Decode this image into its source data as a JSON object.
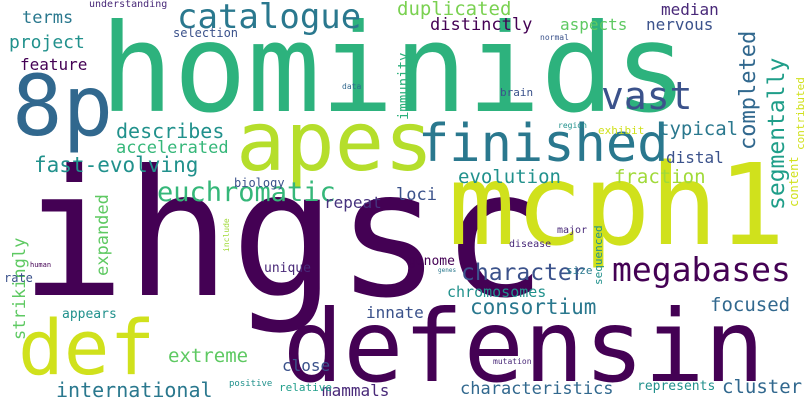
{
  "words": [
    {
      "text": "hominids",
      "color": "#2db27d"
    },
    {
      "text": "ihgsc",
      "color": "#440154"
    },
    {
      "text": "mcph1",
      "color": "#d0e11c"
    },
    {
      "text": "defensin",
      "color": "#440154"
    },
    {
      "text": "apes",
      "color": "#b5de2b"
    },
    {
      "text": "8p",
      "color": "#31688e"
    },
    {
      "text": "def",
      "color": "#d0e11c"
    },
    {
      "text": "finished",
      "color": "#2a788e"
    },
    {
      "text": "megabases",
      "color": "#440154"
    },
    {
      "text": "catalogue",
      "color": "#2a788e"
    },
    {
      "text": "euchromatic",
      "color": "#35b779"
    },
    {
      "text": "character",
      "color": "#3b528b"
    },
    {
      "text": "consortium",
      "color": "#2a788e"
    },
    {
      "text": "fast-evolving",
      "color": "#21918c"
    },
    {
      "text": "international",
      "color": "#2a788e"
    },
    {
      "text": "characteristics",
      "color": "#31688e"
    },
    {
      "text": "describes",
      "color": "#21918c"
    },
    {
      "text": "duplicated",
      "color": "#7ad151"
    },
    {
      "text": "vast",
      "color": "#3b528b"
    },
    {
      "text": "segmentally",
      "color": "#1f9e89"
    },
    {
      "text": "completed",
      "color": "#31688e"
    },
    {
      "text": "evolution",
      "color": "#21918c"
    },
    {
      "text": "fraction",
      "color": "#a0da39"
    },
    {
      "text": "extreme",
      "color": "#5ec962"
    },
    {
      "text": "focused",
      "color": "#31688e"
    },
    {
      "text": "accelerated",
      "color": "#35b779"
    },
    {
      "text": "cluster",
      "color": "#31688e"
    },
    {
      "text": "mammals",
      "color": "#482878"
    },
    {
      "text": "terms",
      "color": "#2a788e"
    },
    {
      "text": "project",
      "color": "#21918c"
    },
    {
      "text": "feature",
      "color": "#440154"
    },
    {
      "text": "distinctly",
      "color": "#440154"
    },
    {
      "text": "aspects",
      "color": "#5ec962"
    },
    {
      "text": "median",
      "color": "#482878"
    },
    {
      "text": "nervous",
      "color": "#3b528b"
    },
    {
      "text": "typical",
      "color": "#2a788e"
    },
    {
      "text": "distal",
      "color": "#3b528b"
    },
    {
      "text": "loci",
      "color": "#3b528b"
    },
    {
      "text": "repeat",
      "color": "#46327e"
    },
    {
      "text": "expanded",
      "color": "#5ec962"
    },
    {
      "text": "strikingly",
      "color": "#5ec962"
    },
    {
      "text": "chromosomes",
      "color": "#21918c"
    },
    {
      "text": "innate",
      "color": "#3b528b"
    },
    {
      "text": "close",
      "color": "#3b528b"
    },
    {
      "text": "immunity",
      "color": "#2db27d"
    },
    {
      "text": "content",
      "color": "#d0e11c"
    },
    {
      "text": "contributed",
      "color": "#d0e11c"
    },
    {
      "text": "exhibit",
      "color": "#d0e11c"
    },
    {
      "text": "biology",
      "color": "#3b528b"
    },
    {
      "text": "genome",
      "color": "#440154"
    },
    {
      "text": "unique",
      "color": "#482878"
    },
    {
      "text": "appears",
      "color": "#21918c"
    },
    {
      "text": "represents",
      "color": "#21918c"
    },
    {
      "text": "relative",
      "color": "#1f9e89"
    },
    {
      "text": "selection",
      "color": "#3b528b"
    },
    {
      "text": "understanding",
      "color": "#482878"
    },
    {
      "text": "brain",
      "color": "#3b528b"
    },
    {
      "text": "size",
      "color": "#2a788e"
    },
    {
      "text": "sequenced",
      "color": "#21918c"
    },
    {
      "text": "rate",
      "color": "#3b528b"
    },
    {
      "text": "major",
      "color": "#482878"
    },
    {
      "text": "disease",
      "color": "#482878"
    },
    {
      "text": "positive",
      "color": "#21918c"
    },
    {
      "text": "mutation",
      "color": "#482878"
    },
    {
      "text": "region",
      "color": "#21918c"
    },
    {
      "text": "data",
      "color": "#31688e"
    },
    {
      "text": "normal",
      "color": "#3b528b"
    },
    {
      "text": "human",
      "color": "#440154"
    },
    {
      "text": "include",
      "color": "#a0da39"
    },
    {
      "text": "genes",
      "color": "#2a788e"
    }
  ]
}
